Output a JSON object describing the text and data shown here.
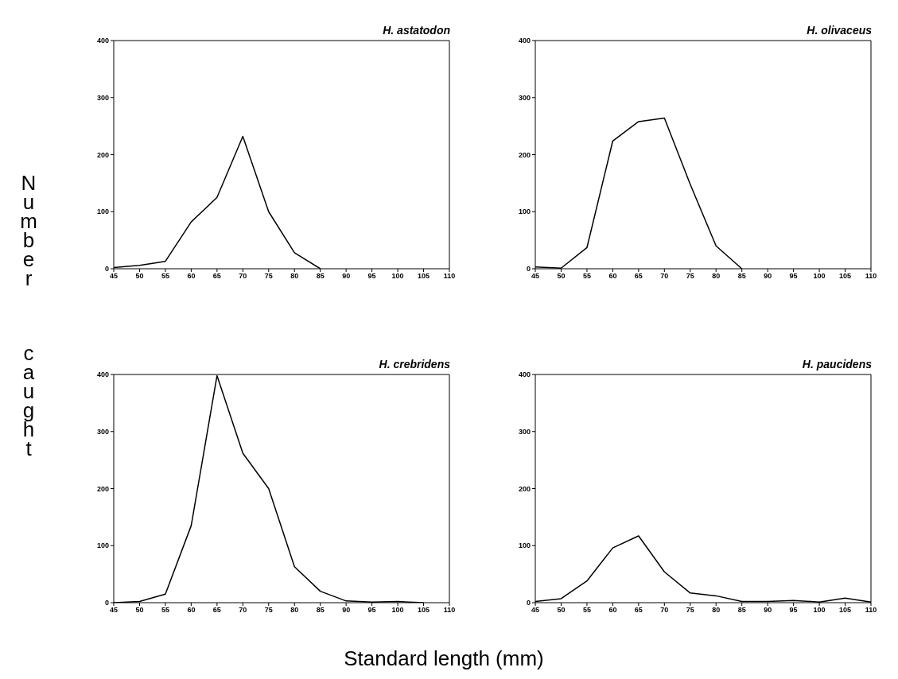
{
  "chart_data": [
    {
      "type": "line",
      "title": "H. astatodon",
      "ylabel": "Number caught",
      "x": [
        45,
        50,
        55,
        60,
        65,
        70,
        75,
        80,
        85
      ],
      "series": [
        {
          "color": "#000000",
          "values": [
            2,
            6,
            13,
            82,
            125,
            232,
            100,
            28,
            0
          ]
        }
      ],
      "xlim": [
        45,
        110
      ],
      "xticks": [
        45,
        50,
        55,
        60,
        65,
        70,
        75,
        80,
        85,
        90,
        95,
        100,
        105,
        110
      ],
      "ylim": [
        0,
        400
      ],
      "yticks": [
        0,
        100,
        200,
        300,
        400
      ],
      "grid": false,
      "legend": false,
      "marker": "none",
      "line_style": "solid"
    },
    {
      "type": "line",
      "title": "H. olivaceus",
      "x": [
        45,
        50,
        55,
        60,
        65,
        70,
        75,
        80,
        85
      ],
      "series": [
        {
          "color": "#000000",
          "values": [
            3,
            1,
            37,
            224,
            258,
            264,
            148,
            40,
            0
          ]
        }
      ],
      "xlim": [
        45,
        110
      ],
      "xticks": [
        45,
        50,
        55,
        60,
        65,
        70,
        75,
        80,
        85,
        90,
        95,
        100,
        105,
        110
      ],
      "ylim": [
        0,
        400
      ],
      "yticks": [
        0,
        100,
        200,
        300,
        400
      ],
      "grid": false,
      "legend": false,
      "marker": "none",
      "line_style": "solid"
    },
    {
      "type": "line",
      "title": "H. crebridens",
      "xlabel": "Standard length (mm)",
      "x": [
        45,
        50,
        55,
        60,
        65,
        70,
        75,
        80,
        85,
        90,
        95,
        100,
        105
      ],
      "series": [
        {
          "color": "#000000",
          "values": [
            0,
            2,
            15,
            135,
            398,
            262,
            200,
            63,
            20,
            3,
            1,
            2,
            0
          ]
        }
      ],
      "xlim": [
        45,
        110
      ],
      "xticks": [
        45,
        50,
        55,
        60,
        65,
        70,
        75,
        80,
        85,
        90,
        95,
        100,
        105,
        110
      ],
      "ylim": [
        0,
        400
      ],
      "yticks": [
        0,
        100,
        200,
        300,
        400
      ],
      "grid": false,
      "legend": false,
      "marker": "none",
      "line_style": "solid"
    },
    {
      "type": "line",
      "title": "H. paucidens",
      "x": [
        45,
        50,
        55,
        60,
        65,
        70,
        75,
        80,
        85,
        90,
        95,
        100,
        105,
        110
      ],
      "series": [
        {
          "color": "#000000",
          "values": [
            2,
            7,
            38,
            96,
            117,
            54,
            17,
            12,
            2,
            2,
            4,
            1,
            8,
            1
          ]
        }
      ],
      "xlim": [
        45,
        110
      ],
      "xticks": [
        45,
        50,
        55,
        60,
        65,
        70,
        75,
        80,
        85,
        90,
        95,
        100,
        105,
        110
      ],
      "ylim": [
        0,
        400
      ],
      "yticks": [
        0,
        100,
        200,
        300,
        400
      ],
      "grid": false,
      "legend": false,
      "marker": "none",
      "line_style": "solid"
    }
  ]
}
